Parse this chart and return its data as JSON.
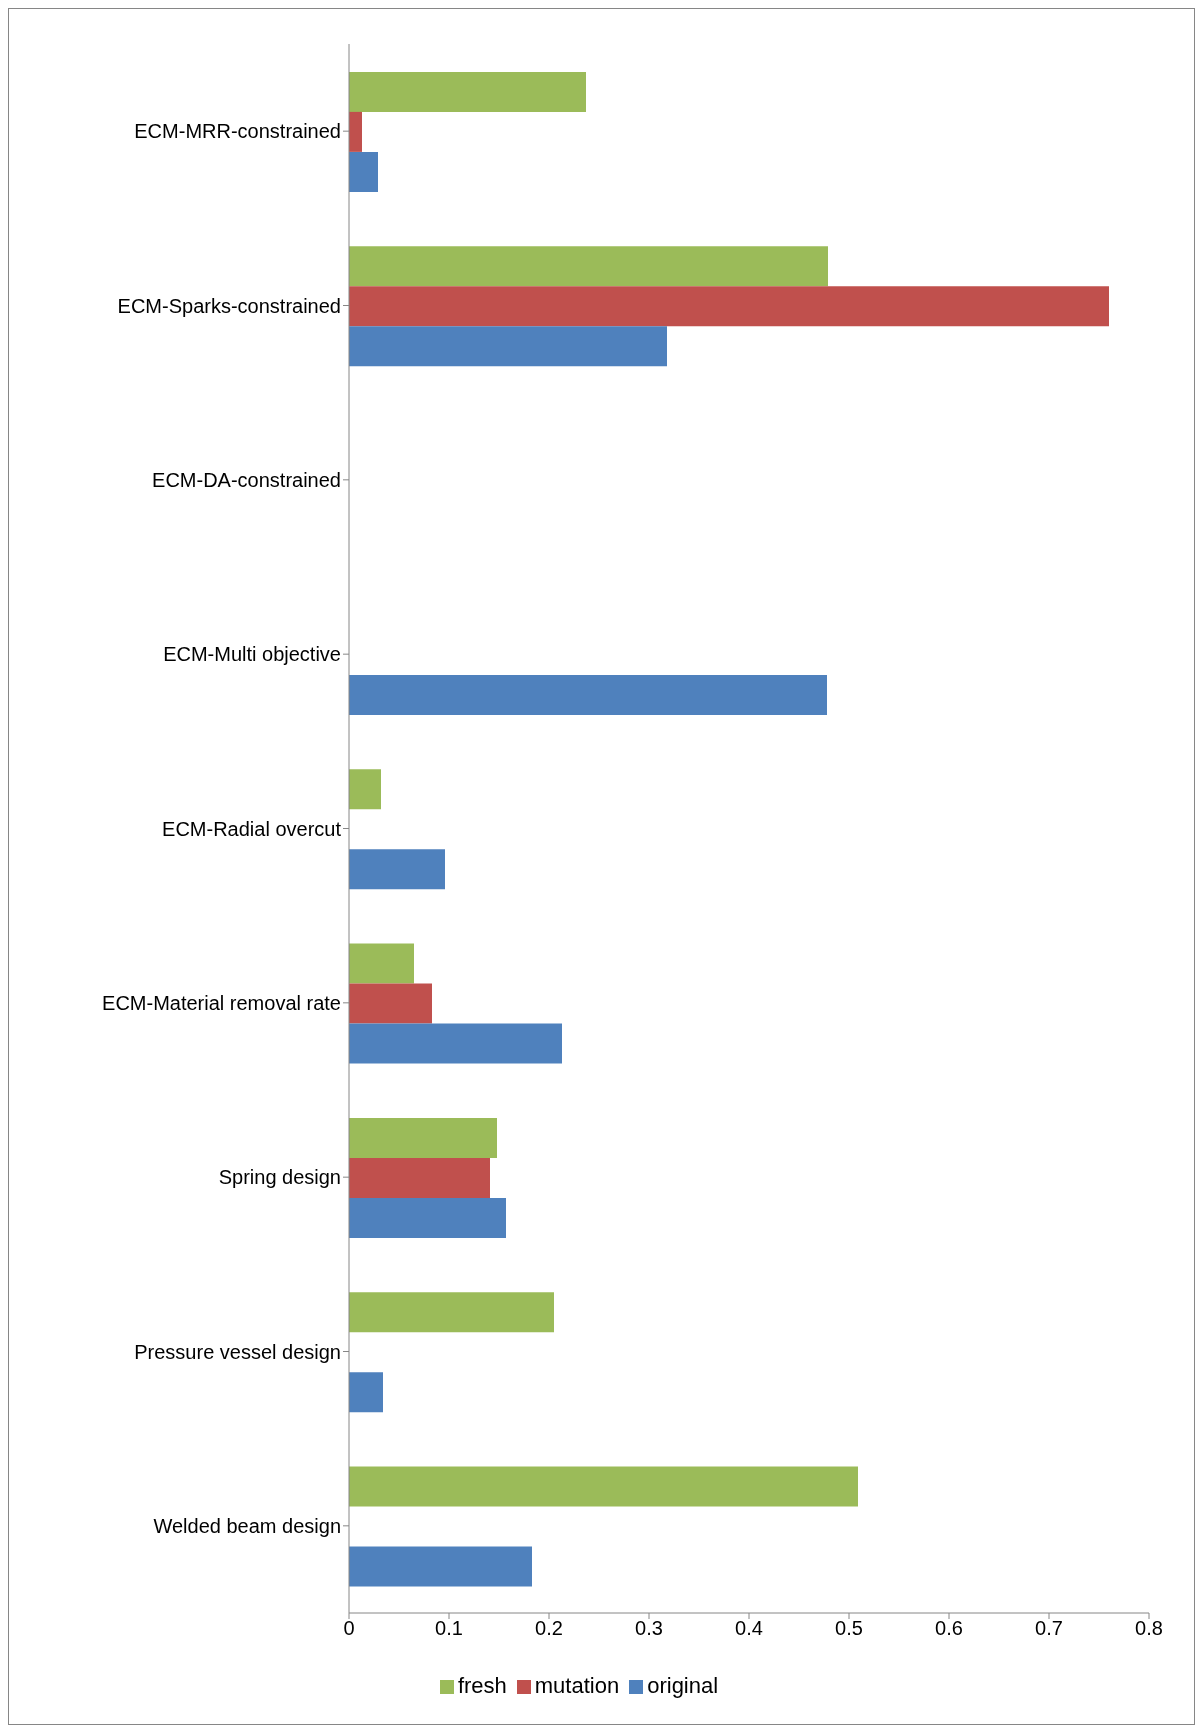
{
  "chart_data": {
    "type": "bar",
    "orientation": "horizontal",
    "categories": [
      "ECM-MRR-constrained",
      "ECM-Sparks-constrained",
      "ECM-DA-constrained",
      "ECM-Multi objective",
      "ECM-Radial overcut",
      "ECM-Material removal rate",
      "Spring design",
      "Pressure vessel design",
      "Welded beam design"
    ],
    "series": [
      {
        "name": "fresh",
        "color": "#9bbb59",
        "values": [
          0.237,
          0.479,
          null,
          null,
          0.032,
          0.065,
          0.148,
          0.205,
          0.509
        ]
      },
      {
        "name": "mutation",
        "color": "#c0504d",
        "values": [
          0.013,
          0.76,
          null,
          null,
          null,
          0.083,
          0.141,
          null,
          null
        ]
      },
      {
        "name": "original",
        "color": "#4f81bd",
        "values": [
          0.029,
          0.318,
          null,
          0.478,
          0.096,
          0.213,
          0.157,
          0.034,
          0.183
        ]
      }
    ],
    "xlim": [
      0,
      0.8
    ],
    "xticks": [
      0,
      0.1,
      0.2,
      0.3,
      0.4,
      0.5,
      0.6,
      0.7,
      0.8
    ],
    "grid": false,
    "legend": "bottom"
  }
}
